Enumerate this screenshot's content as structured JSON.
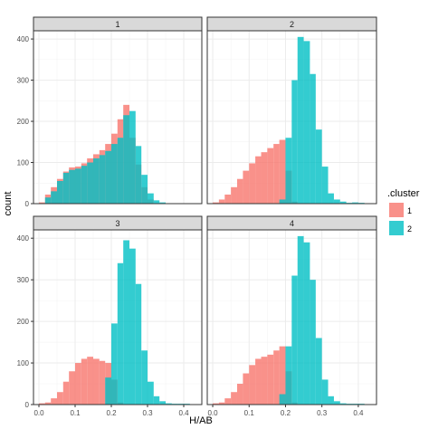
{
  "chart_data": {
    "type": "histogram",
    "facet_labels": [
      "1",
      "2",
      "3",
      "4"
    ],
    "xlabel": "H/AB",
    "ylabel": "count",
    "x_ticks": [
      "0.0",
      "0.1",
      "0.2",
      "0.3",
      "0.4"
    ],
    "y_ticks": [
      "0",
      "100",
      "200",
      "300",
      "400"
    ],
    "xlim": [
      -0.015,
      0.45
    ],
    "ylim": [
      0,
      420
    ],
    "bin_width": 0.0167,
    "legend": {
      "title": ".cluster",
      "position": "right",
      "items": [
        {
          "label": "1",
          "color": "#F8766D"
        },
        {
          "label": "2",
          "color": "#00BFC4"
        }
      ]
    },
    "facets": [
      {
        "label": "1",
        "series": [
          {
            "cluster": "1",
            "bins": [
              [
                0.0,
                0.017,
                3
              ],
              [
                0.017,
                0.033,
                22
              ],
              [
                0.033,
                0.05,
                40
              ],
              [
                0.05,
                0.067,
                60
              ],
              [
                0.067,
                0.083,
                78
              ],
              [
                0.083,
                0.1,
                88
              ],
              [
                0.1,
                0.117,
                90
              ],
              [
                0.117,
                0.133,
                98
              ],
              [
                0.133,
                0.15,
                110
              ],
              [
                0.15,
                0.167,
                120
              ],
              [
                0.167,
                0.183,
                130
              ],
              [
                0.183,
                0.2,
                145
              ],
              [
                0.2,
                0.217,
                170
              ],
              [
                0.217,
                0.233,
                205
              ],
              [
                0.233,
                0.25,
                240
              ],
              [
                0.25,
                0.267,
                160
              ],
              [
                0.267,
                0.283,
                95
              ],
              [
                0.283,
                0.3,
                40
              ],
              [
                0.3,
                0.317,
                10
              ]
            ]
          },
          {
            "cluster": "2",
            "bins": [
              [
                0.017,
                0.033,
                15
              ],
              [
                0.033,
                0.05,
                30
              ],
              [
                0.05,
                0.067,
                55
              ],
              [
                0.067,
                0.083,
                75
              ],
              [
                0.083,
                0.1,
                82
              ],
              [
                0.1,
                0.117,
                85
              ],
              [
                0.117,
                0.133,
                92
              ],
              [
                0.133,
                0.15,
                100
              ],
              [
                0.15,
                0.167,
                110
              ],
              [
                0.167,
                0.183,
                118
              ],
              [
                0.183,
                0.2,
                128
              ],
              [
                0.2,
                0.217,
                145
              ],
              [
                0.217,
                0.233,
                160
              ],
              [
                0.233,
                0.25,
                215
              ],
              [
                0.25,
                0.267,
                225
              ],
              [
                0.267,
                0.283,
                140
              ],
              [
                0.283,
                0.3,
                70
              ],
              [
                0.3,
                0.317,
                25
              ],
              [
                0.317,
                0.333,
                8
              ],
              [
                0.333,
                0.35,
                3
              ]
            ]
          }
        ]
      },
      {
        "label": "2",
        "series": [
          {
            "cluster": "1",
            "bins": [
              [
                0.0,
                0.017,
                3
              ],
              [
                0.017,
                0.033,
                10
              ],
              [
                0.033,
                0.05,
                22
              ],
              [
                0.05,
                0.067,
                40
              ],
              [
                0.067,
                0.083,
                60
              ],
              [
                0.083,
                0.1,
                80
              ],
              [
                0.1,
                0.117,
                98
              ],
              [
                0.117,
                0.133,
                115
              ],
              [
                0.133,
                0.15,
                125
              ],
              [
                0.15,
                0.167,
                135
              ],
              [
                0.167,
                0.183,
                145
              ],
              [
                0.183,
                0.2,
                155
              ],
              [
                0.2,
                0.217,
                80
              ],
              [
                0.217,
                0.233,
                5
              ]
            ]
          },
          {
            "cluster": "2",
            "bins": [
              [
                0.183,
                0.2,
                10
              ],
              [
                0.2,
                0.217,
                160
              ],
              [
                0.217,
                0.233,
                300
              ],
              [
                0.233,
                0.25,
                405
              ],
              [
                0.25,
                0.267,
                395
              ],
              [
                0.267,
                0.283,
                315
              ],
              [
                0.283,
                0.3,
                180
              ],
              [
                0.3,
                0.317,
                90
              ],
              [
                0.317,
                0.333,
                25
              ],
              [
                0.333,
                0.35,
                10
              ],
              [
                0.35,
                0.367,
                5
              ],
              [
                0.367,
                0.383,
                2
              ],
              [
                0.383,
                0.4,
                3
              ],
              [
                0.4,
                0.417,
                2
              ]
            ]
          }
        ]
      },
      {
        "label": "3",
        "series": [
          {
            "cluster": "1",
            "bins": [
              [
                0.0,
                0.017,
                3
              ],
              [
                0.017,
                0.033,
                5
              ],
              [
                0.033,
                0.05,
                15
              ],
              [
                0.05,
                0.067,
                30
              ],
              [
                0.067,
                0.083,
                55
              ],
              [
                0.083,
                0.1,
                80
              ],
              [
                0.1,
                0.117,
                100
              ],
              [
                0.117,
                0.133,
                110
              ],
              [
                0.133,
                0.15,
                115
              ],
              [
                0.15,
                0.167,
                110
              ],
              [
                0.167,
                0.183,
                105
              ],
              [
                0.183,
                0.2,
                100
              ],
              [
                0.2,
                0.217,
                60
              ],
              [
                0.217,
                0.233,
                5
              ]
            ]
          },
          {
            "cluster": "2",
            "bins": [
              [
                0.183,
                0.2,
                65
              ],
              [
                0.2,
                0.217,
                195
              ],
              [
                0.217,
                0.233,
                340
              ],
              [
                0.233,
                0.25,
                395
              ],
              [
                0.25,
                0.267,
                375
              ],
              [
                0.267,
                0.283,
                290
              ],
              [
                0.283,
                0.3,
                130
              ],
              [
                0.3,
                0.317,
                55
              ],
              [
                0.317,
                0.333,
                20
              ],
              [
                0.333,
                0.35,
                8
              ],
              [
                0.35,
                0.367,
                3
              ],
              [
                0.367,
                0.383,
                2
              ],
              [
                0.383,
                0.4,
                2
              ],
              [
                0.4,
                0.417,
                2
              ]
            ]
          }
        ]
      },
      {
        "label": "4",
        "series": [
          {
            "cluster": "1",
            "bins": [
              [
                0.0,
                0.017,
                3
              ],
              [
                0.017,
                0.033,
                5
              ],
              [
                0.033,
                0.05,
                15
              ],
              [
                0.05,
                0.067,
                30
              ],
              [
                0.067,
                0.083,
                50
              ],
              [
                0.083,
                0.1,
                75
              ],
              [
                0.1,
                0.117,
                95
              ],
              [
                0.117,
                0.133,
                110
              ],
              [
                0.133,
                0.15,
                115
              ],
              [
                0.15,
                0.167,
                120
              ],
              [
                0.167,
                0.183,
                130
              ],
              [
                0.183,
                0.2,
                140
              ],
              [
                0.2,
                0.217,
                80
              ],
              [
                0.217,
                0.233,
                5
              ]
            ]
          },
          {
            "cluster": "2",
            "bins": [
              [
                0.183,
                0.2,
                25
              ],
              [
                0.2,
                0.217,
                140
              ],
              [
                0.217,
                0.233,
                310
              ],
              [
                0.233,
                0.25,
                405
              ],
              [
                0.25,
                0.267,
                390
              ],
              [
                0.267,
                0.283,
                300
              ],
              [
                0.283,
                0.3,
                160
              ],
              [
                0.3,
                0.317,
                60
              ],
              [
                0.317,
                0.333,
                20
              ],
              [
                0.333,
                0.35,
                8
              ],
              [
                0.35,
                0.367,
                3
              ],
              [
                0.367,
                0.383,
                2
              ],
              [
                0.383,
                0.4,
                2
              ],
              [
                0.4,
                0.417,
                2
              ]
            ]
          }
        ]
      }
    ]
  }
}
